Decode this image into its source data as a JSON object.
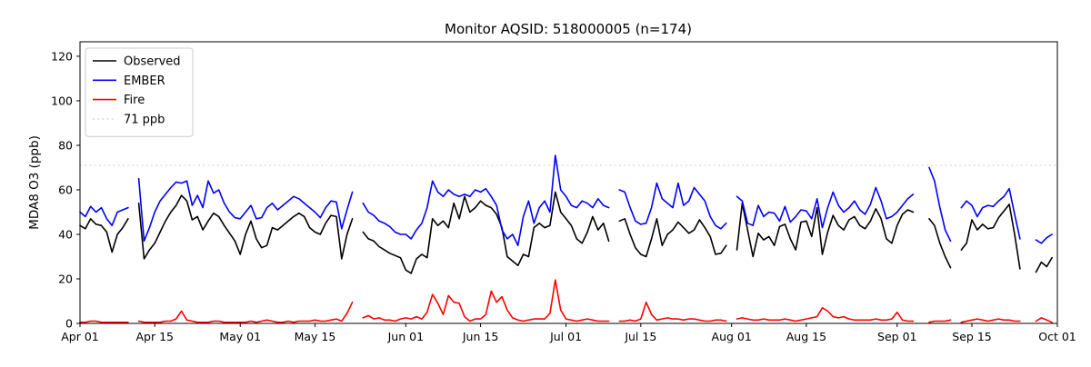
{
  "chart_data": {
    "type": "line",
    "title": "Monitor AQSID: 518000005 (n=174)",
    "xlabel": "",
    "ylabel": "MDA8 O3 (ppb)",
    "ylim": [
      0,
      126.5
    ],
    "y_ticks": [
      0,
      20,
      40,
      60,
      80,
      100,
      120
    ],
    "x_total_days": 183,
    "x_start_date": "Apr 01",
    "x_frequency": "daily",
    "grid": false,
    "x_ticks": [
      {
        "day": 0,
        "label": "Apr 01"
      },
      {
        "day": 14,
        "label": "Apr 15"
      },
      {
        "day": 30,
        "label": "May 01"
      },
      {
        "day": 44,
        "label": "May 15"
      },
      {
        "day": 61,
        "label": "Jun 01"
      },
      {
        "day": 75,
        "label": "Jun 15"
      },
      {
        "day": 91,
        "label": "Jul 01"
      },
      {
        "day": 105,
        "label": "Jul 15"
      },
      {
        "day": 122,
        "label": "Aug 01"
      },
      {
        "day": 136,
        "label": "Aug 15"
      },
      {
        "day": 153,
        "label": "Sep 01"
      },
      {
        "day": 167,
        "label": "Sep 15"
      },
      {
        "day": 183,
        "label": "Oct 01"
      }
    ],
    "threshold": {
      "value": 71,
      "label": "71 ppb",
      "color": "#d9d9d9",
      "linestyle": "dotted"
    },
    "legend": {
      "location": "upper left",
      "entries": [
        {
          "label": "Observed",
          "color": "#000000",
          "linestyle": "solid"
        },
        {
          "label": "EMBER",
          "color": "#0000ff",
          "linestyle": "solid"
        },
        {
          "label": "Fire",
          "color": "#ff0000",
          "linestyle": "solid"
        },
        {
          "label": "71 ppb",
          "color": "#d9d9d9",
          "linestyle": "dotted"
        }
      ]
    },
    "series": [
      {
        "name": "Observed",
        "color": "#000000",
        "values": [
          44,
          42.5,
          47,
          44.5,
          44,
          41,
          32,
          40,
          43,
          47,
          null,
          54,
          29,
          33,
          36,
          41,
          46,
          50,
          53,
          57.5,
          55,
          46.5,
          48,
          42,
          46,
          49.5,
          48,
          44,
          40.5,
          37,
          31,
          40,
          46,
          38,
          34,
          35,
          43,
          42,
          44,
          46,
          48,
          49.5,
          48,
          43,
          41,
          40,
          45,
          48.5,
          48,
          29,
          40,
          47,
          null,
          41,
          38,
          37,
          34.5,
          33,
          31.5,
          30.5,
          29.5,
          24,
          22.5,
          29,
          31,
          29.5,
          47,
          44,
          46,
          43,
          54,
          47,
          57,
          50,
          52,
          55,
          53,
          52,
          49,
          43,
          30,
          28,
          26,
          31,
          30,
          43,
          45,
          43,
          44,
          59,
          50,
          47,
          44,
          38,
          36,
          41,
          48,
          42,
          45,
          37,
          null,
          46,
          47,
          40,
          34,
          31,
          30,
          38,
          47,
          35,
          40,
          42,
          45.5,
          43,
          40.5,
          42,
          46.5,
          43,
          39,
          31,
          31.5,
          35,
          null,
          33,
          54,
          42,
          30,
          40.5,
          37.5,
          39,
          35,
          43.5,
          44.5,
          38,
          33,
          45.5,
          46,
          39,
          52,
          31,
          41,
          48.5,
          44,
          42,
          46.5,
          48,
          44,
          42.5,
          46,
          51.5,
          47,
          38,
          36,
          44,
          49,
          51,
          50,
          null,
          null,
          47,
          44,
          36,
          30,
          25,
          null,
          33,
          36,
          46.5,
          42,
          44.5,
          42.5,
          43,
          47.5,
          50.5,
          53.5,
          40,
          24.5,
          null,
          null,
          23,
          27.5,
          25.5,
          29.5
        ]
      },
      {
        "name": "EMBER",
        "color": "#0000ff",
        "values": [
          50,
          48,
          52.5,
          50,
          52,
          47,
          44,
          50,
          51,
          52,
          null,
          65,
          37,
          43,
          50,
          55,
          58,
          61,
          63.5,
          63,
          64,
          53,
          57.5,
          52,
          64,
          58.5,
          60,
          54,
          50,
          47.5,
          47,
          50,
          53,
          47,
          47.5,
          52,
          54,
          51,
          53,
          55,
          57,
          56,
          54,
          52,
          50,
          47.5,
          52,
          55,
          54.5,
          42.5,
          51,
          59,
          null,
          54,
          50,
          48.5,
          46,
          45,
          43.5,
          41,
          40,
          40,
          38,
          42,
          45,
          52,
          64,
          59,
          57,
          60,
          58,
          57,
          58,
          57,
          60,
          59,
          60.5,
          57,
          53,
          42,
          38,
          40,
          35,
          48,
          55,
          45,
          52,
          55,
          50,
          75.5,
          60,
          57,
          53,
          52,
          55,
          54,
          52,
          56,
          53,
          52,
          null,
          60,
          59,
          52,
          46,
          44.5,
          45,
          52,
          63,
          56,
          54,
          52,
          63,
          53,
          55,
          61,
          58,
          55,
          48,
          44,
          42.5,
          45,
          null,
          57,
          55,
          45,
          44,
          53,
          48,
          50,
          49.5,
          46,
          52.5,
          45.5,
          48,
          51,
          50.5,
          47,
          56,
          43,
          52,
          59,
          53,
          50,
          52,
          55,
          51,
          49,
          53.5,
          61,
          55,
          47,
          48,
          50,
          53,
          56,
          58,
          null,
          null,
          70,
          64,
          52,
          42,
          37,
          null,
          52,
          55,
          53,
          48,
          52,
          53,
          52.5,
          55,
          57,
          60.5,
          49,
          38,
          null,
          null,
          37.5,
          36,
          38.5,
          40
        ]
      },
      {
        "name": "Fire",
        "color": "#ff0000",
        "values": [
          0.5,
          0.5,
          1,
          1,
          0.5,
          0.5,
          0.5,
          0.5,
          0.5,
          0.5,
          null,
          1,
          0.5,
          0.5,
          0.5,
          0.5,
          1,
          1,
          2,
          5.5,
          1.5,
          1,
          0.5,
          0.5,
          0.5,
          1,
          1,
          0.5,
          0.5,
          0.5,
          0.5,
          0.5,
          1,
          0.5,
          1,
          1.5,
          1,
          0.5,
          0.5,
          1,
          0.5,
          1,
          1,
          1,
          1.5,
          1,
          1,
          1.5,
          2,
          1,
          4.5,
          9.5,
          null,
          2.5,
          3.5,
          2,
          2.5,
          1.5,
          1.5,
          1,
          2,
          2.5,
          2,
          3,
          2,
          5,
          13,
          9,
          4,
          12.5,
          9.5,
          9,
          3,
          1,
          2,
          2,
          4,
          14.5,
          9.5,
          12,
          6,
          2.5,
          1.5,
          1,
          1.5,
          2,
          2,
          2,
          4.5,
          19.5,
          6,
          2,
          1.5,
          1,
          1.5,
          2,
          1.5,
          1,
          1,
          1,
          null,
          1,
          1,
          1.5,
          1,
          2,
          9.5,
          4,
          1.5,
          2,
          2.5,
          2,
          2,
          1.5,
          2,
          2,
          1.5,
          1,
          1,
          1.5,
          1.5,
          1,
          null,
          2,
          2.5,
          2,
          1.5,
          1.5,
          2,
          1.5,
          1.5,
          1.5,
          2,
          1.5,
          1,
          1.5,
          2,
          2.5,
          3,
          7,
          5.5,
          3,
          2.5,
          3,
          2,
          1.5,
          1.5,
          1.5,
          1.5,
          2,
          1.5,
          1.5,
          2,
          5,
          1.5,
          1,
          1,
          null,
          null,
          0.5,
          1,
          1,
          1,
          1.5,
          null,
          0.5,
          1,
          1.5,
          2,
          1.5,
          1,
          1.5,
          2,
          1.5,
          1.5,
          1,
          1,
          null,
          null,
          1,
          2.5,
          1.5,
          0.5
        ]
      }
    ]
  }
}
